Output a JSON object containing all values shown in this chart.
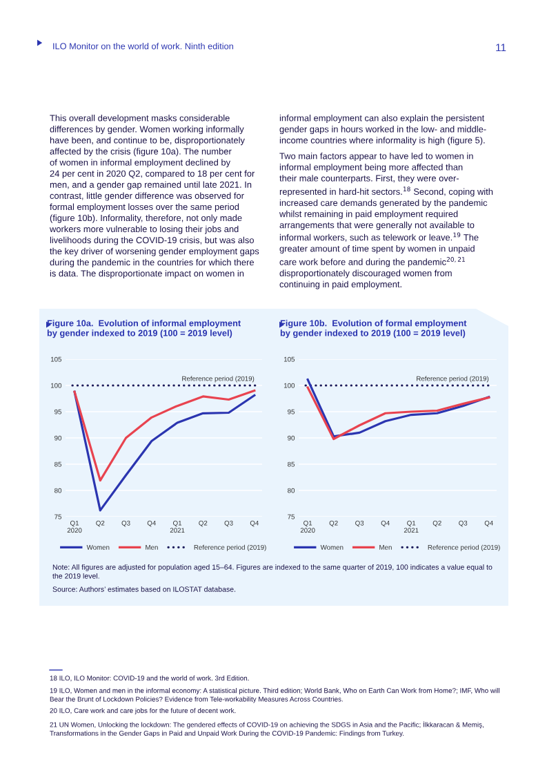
{
  "chart_data": [
    {
      "type": "other",
      "annotations": [
        "ILO Monitor on the world of work. Ninth edition",
        "11",
        "This overall development masks considerable\ndifferences by gender. Women working informally\nhave been, and continue to be, disproportionately\naffected by the crisis (figure 10a). The number\nof women in informal employment declined by\n24 per cent in 2020 Q2, compared to 18 per cent for\nmen, and a gender gap remained until late 2021. In\ncontrast, little gender difference was observed for\nformal employment losses over the same period\n(figure 10b). Informality, therefore, not only made\nworkers more vulnerable to losing their jobs and\nlivelihoods during the COVID-19 crisis, but was also\nthe key driver of worsening gender employment gaps\nduring the pandemic in the countries for which there\nis data. The disproportionate impact on women in",
        "informal employment can also explain the persistent\ngender gaps in hours worked in the low- and middle-\nincome countries where informality is high (figure 5).",
        "Two main factors appear to have led to women in\ninformal employment being more affected than\ntheir male counterparts. First, they were over-\nrepresented in hard-hit sectors.$^{18}$ Second, coping with\nincreased care demands generated by the pandemic\nwhilst remaining in paid employment required\narrangements that were generally not available to\ninformal workers, such as telework or leave.$^{19}$ The\ngreater amount of time spent by women in unpaid\ncare work before and during the pandemic$^{20,21}$\ndisproportionately discouraged women from\ncontinuing in paid employment."
      ]
    },
    {
      "type": "line",
      "title": "Figure 10a.  Evolution of informal employment\nby gender indexed to 2019 (100 = 2019 level)",
      "categories": [
        "Q1\n2020",
        "Q2",
        "Q3",
        "Q4",
        "Q1\n2021",
        "Q2",
        "Q3",
        "Q4"
      ],
      "series": [
        {
          "name": "Women",
          "color": "#2b35b0",
          "values": [
            98.8,
            76.2,
            82.9,
            89.4,
            92.9,
            94.7,
            94.8,
            98.1
          ]
        },
        {
          "name": "Men",
          "color": "#e8434f",
          "values": [
            98.8,
            81.9,
            90.0,
            93.9,
            96.1,
            97.9,
            97.3,
            99.0
          ]
        }
      ],
      "ylim": [
        75,
        105
      ],
      "yticks": [
        75,
        80,
        85,
        90,
        95,
        100,
        105
      ],
      "grid": "y",
      "legend": "bottom",
      "ref_lines": [
        {
          "axis": "y",
          "value": 100,
          "label": "Reference period (2019)",
          "color": "#1d1d5c",
          "line_style": "dotted"
        }
      ]
    },
    {
      "type": "line",
      "title": "Figure 10b.  Evolution of formal employment\nby gender indexed to 2019 (100 = 2019 level)",
      "categories": [
        "Q1\n2020",
        "Q2",
        "Q3",
        "Q4",
        "Q1\n2021",
        "Q2",
        "Q3",
        "Q4"
      ],
      "series": [
        {
          "name": "Women",
          "color": "#2b35b0",
          "values": [
            101.1,
            90.3,
            91.0,
            93.2,
            94.4,
            94.7,
            96.1,
            97.8
          ]
        },
        {
          "name": "Men",
          "color": "#e8434f",
          "values": [
            99.6,
            89.8,
            92.4,
            94.7,
            95.0,
            95.2,
            96.5,
            97.7
          ]
        }
      ],
      "ylim": [
        75,
        105
      ],
      "yticks": [
        75,
        80,
        85,
        90,
        95,
        100,
        105
      ],
      "grid": "y",
      "legend": "bottom",
      "ref_lines": [
        {
          "axis": "y",
          "value": 100,
          "label": "Reference period (2019)",
          "color": "#1d1d5c",
          "line_style": "dotted"
        }
      ]
    },
    {
      "type": "other",
      "annotations": [
        "Note: All figures are adjusted for population aged 15–64. Figures are indexed to the same quarter of 2019, 100 indicates a value equal to\nthe 2019 level.",
        "Source: Authors’ estimates based on ILOSTAT database.",
        "18 ILO, ILO Monitor: COVID-19 and the world of work. 3rd Edition.",
        "19 ILO, Women and men in the informal economy: A statistical picture. Third edition; World Bank, Who on Earth Can Work from Home?; IMF, Who will\nBear the Brunt of Lockdown Policies? Evidence from Tele-workability Measures Across Countries.",
        "20 ILO, Care work and care jobs for the future of decent work.",
        "21 UN Women, Unlocking the lockdown: The gendered effects of COVID-19 on achieving the SDGS in Asia and the Pacific; İlkkaracan & Memiş,\nTransformations in the Gender Gaps in Paid and Unpaid Work During the COVID-19 Pandemic: Findings from Turkey."
      ]
    }
  ]
}
